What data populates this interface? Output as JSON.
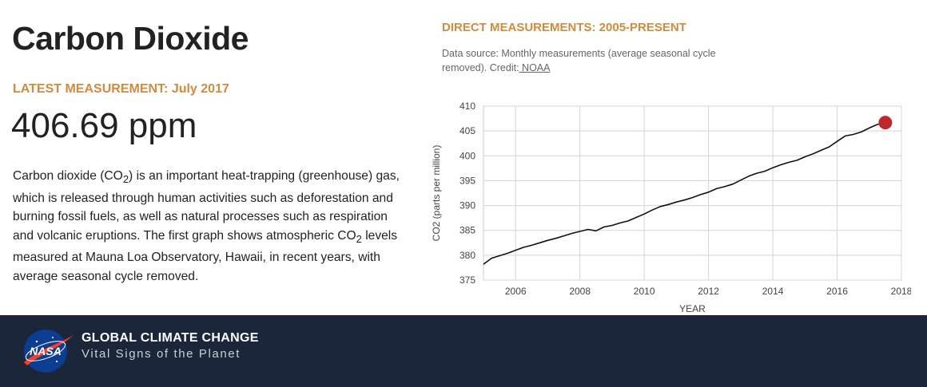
{
  "page": {
    "title": "Carbon Dioxide",
    "latest_label": "LATEST MEASUREMENT: July 2017",
    "latest_value": "406.69 ppm",
    "description": {
      "part1": "Carbon dioxide (CO",
      "sub1": "2",
      "part2": ") is an important heat-trapping (greenhouse) gas, which is released through human activities such as deforestation and burning fossil fuels, as well as natural processes such as respiration and volcanic eruptions. The first graph shows atmospheric CO",
      "sub2": "2",
      "part3": " levels measured at Mauna Loa Observatory, Hawaii, in recent years, with average seasonal cycle removed."
    }
  },
  "chart_section": {
    "title": "DIRECT MEASUREMENTS: 2005-PRESENT",
    "source_text": "Data source: Monthly measurements (average seasonal cycle removed). Credit:",
    "credit_link": " NOAA"
  },
  "footer": {
    "logo_text": "NASA",
    "title": "GLOBAL CLIMATE CHANGE",
    "subtitle": "Vital Signs of the Planet"
  },
  "colors": {
    "accent": "#d08b3e",
    "line": "#111111",
    "marker": "#c0272d",
    "footer_bg": "#1b263a"
  },
  "chart_data": {
    "type": "line",
    "xlabel": "YEAR",
    "ylabel": "CO2 (parts per million)",
    "xlim": [
      2005,
      2018
    ],
    "ylim": [
      375,
      410
    ],
    "xticks": [
      2006,
      2008,
      2010,
      2012,
      2014,
      2016,
      2018
    ],
    "yticks": [
      375,
      380,
      385,
      390,
      395,
      400,
      405,
      410
    ],
    "grid": true,
    "series": [
      {
        "x": [
          2005.0,
          2005.25,
          2005.5,
          2005.75,
          2006.0,
          2006.25,
          2006.5,
          2006.75,
          2007.0,
          2007.25,
          2007.5,
          2007.75,
          2008.0,
          2008.25,
          2008.5,
          2008.75,
          2009.0,
          2009.25,
          2009.5,
          2009.75,
          2010.0,
          2010.25,
          2010.5,
          2010.75,
          2011.0,
          2011.25,
          2011.5,
          2011.75,
          2012.0,
          2012.25,
          2012.5,
          2012.75,
          2013.0,
          2013.25,
          2013.5,
          2013.75,
          2014.0,
          2014.25,
          2014.5,
          2014.75,
          2015.0,
          2015.25,
          2015.5,
          2015.75,
          2016.0,
          2016.25,
          2016.5,
          2016.75,
          2017.0,
          2017.25,
          2017.5
        ],
        "y": [
          378.2,
          379.4,
          379.9,
          380.4,
          381.0,
          381.6,
          382.0,
          382.5,
          383.0,
          383.4,
          383.9,
          384.4,
          384.8,
          385.2,
          384.9,
          385.7,
          386.0,
          386.5,
          386.9,
          387.6,
          388.3,
          389.1,
          389.8,
          390.2,
          390.7,
          391.1,
          391.6,
          392.2,
          392.7,
          393.4,
          393.8,
          394.3,
          395.1,
          395.9,
          396.5,
          396.9,
          397.6,
          398.2,
          398.7,
          399.1,
          399.8,
          400.4,
          401.1,
          401.8,
          402.9,
          404.0,
          404.3,
          404.8,
          405.6,
          406.3,
          406.69
        ]
      }
    ],
    "highlight": {
      "x": 2017.5,
      "y": 406.69
    }
  }
}
